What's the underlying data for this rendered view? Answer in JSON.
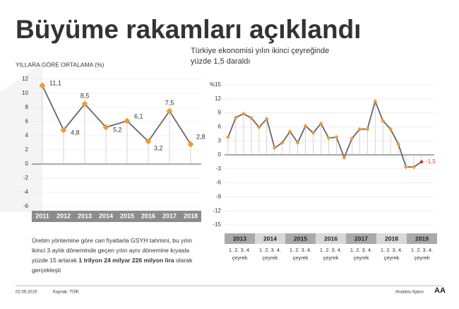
{
  "header": {
    "title": "Büyüme rakamları açıklandı",
    "subtitle_lines": [
      "Türkiye ekonomisi yılın ikinci çeyreğinde",
      "yüzde 1,5 daraldı"
    ]
  },
  "chart_data": [
    {
      "type": "line",
      "title": "YILLARA GÖRE ORTALAMA (%)",
      "categories": [
        "2011",
        "2012",
        "2013",
        "2014",
        "2015",
        "2016",
        "2017",
        "2018"
      ],
      "series": [
        {
          "values": [
            11.1,
            4.8,
            8.5,
            5.2,
            6.1,
            3.2,
            7.5,
            2.8
          ],
          "value_labels": [
            "11,1",
            "4,8",
            "8,5",
            "5,2",
            "6,1",
            "3,2",
            "7,5",
            "2,8"
          ],
          "color": "#f29b35"
        }
      ],
      "ylim": [
        -6,
        12
      ],
      "yticks": [
        -6,
        -4,
        -2,
        0,
        2,
        4,
        6,
        8,
        10,
        12
      ],
      "grid": true
    },
    {
      "type": "line",
      "categories": [
        null,
        null,
        null,
        null,
        null,
        null,
        null,
        null,
        null,
        null,
        null,
        null,
        null,
        null,
        null,
        null,
        null,
        null,
        null,
        null,
        null,
        null,
        null,
        null,
        null,
        null
      ],
      "year_labels": [
        "2013",
        "2014",
        "2015",
        "2016",
        "2017",
        "2018",
        "2019"
      ],
      "quarter_labels": "1. 2. 3. 4.",
      "quarter_word": "çeyrek",
      "series": [
        {
          "values": [
            3.8,
            8.0,
            8.8,
            7.9,
            5.9,
            7.7,
            1.5,
            2.6,
            5.0,
            2.6,
            6.2,
            4.7,
            6.7,
            3.6,
            3.8,
            -0.6,
            3.5,
            5.5,
            5.5,
            11.5,
            7.3,
            5.5,
            2.3,
            -2.6,
            -2.6,
            -1.5
          ],
          "color": "#f29b35",
          "last_color": "#e8392d"
        }
      ],
      "last_label": "-1,5",
      "ylim": [
        -15,
        15
      ],
      "yticks": [
        -15,
        -12,
        -9,
        -6,
        -3,
        0,
        3,
        6,
        9,
        12,
        {
          "value": 15,
          "label": "%15"
        }
      ],
      "grid": true
    }
  ],
  "text": {
    "parts": [
      "Üretim yöntemine göre cari fiyatlarla GSYH tahmini, bu yılın ikinci 3 aylık döneminde geçen yılın aynı dönemine kıyasla yüzde 15 artarak ",
      "1 trilyon 24 milyar 226 milyon lira",
      " olarak gerçekleşti"
    ]
  },
  "footer": {
    "date": "02.09.2019",
    "source": "Kaynak: TÜİK",
    "agency": "Anadolu Ajansı",
    "logo": "AA"
  }
}
